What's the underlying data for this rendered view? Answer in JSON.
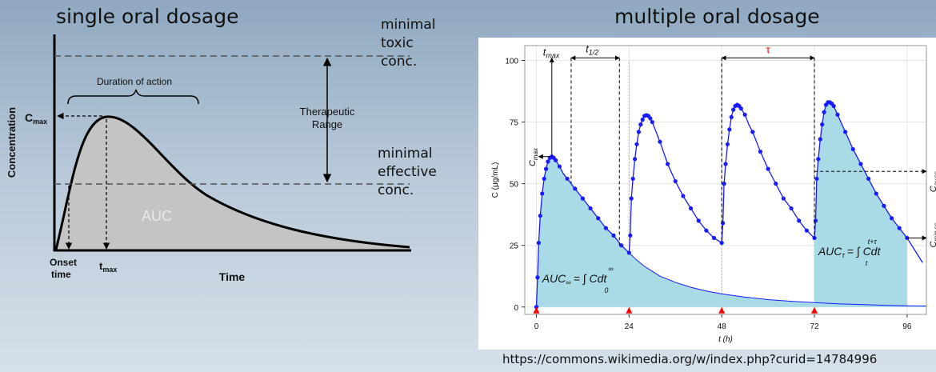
{
  "left_panel": {
    "title": "single oral dosage",
    "toxic_label": [
      "minimal",
      "toxic",
      "conc."
    ],
    "effective_label": [
      "minimal",
      "effective",
      "conc."
    ],
    "therapeutic_label": [
      "Therapeutic",
      "Range"
    ],
    "duration_label": "Duration of action",
    "ylabel": "Concentration",
    "xlabel": "Time",
    "cmax_label": "C",
    "cmax_sub": "max",
    "onset_label": [
      "Onset",
      "time"
    ],
    "tmax_label": "t",
    "tmax_sub": "max",
    "auc_label": "AUC",
    "colors": {
      "fill": "#c4c4c4",
      "curve": "#000000",
      "dash": "#555555"
    }
  },
  "right_panel": {
    "title": "multiple oral dosage",
    "tmax_label": "t",
    "tmax_sub": "max",
    "thalf_label": "t",
    "thalf_sub": "1/2",
    "tau_label": "τ",
    "cmax_label": "C",
    "cmax_sub": "max",
    "cav_label": "C",
    "cav_sub": "av,ss",
    "cmin_label": "C",
    "cmin_sub": "min,ss",
    "auc_inf_label": "AUC",
    "auc_inf_sub": "∞",
    "auc_inf_integral": "= ∫ Cdt",
    "auc_inf_lower": "0",
    "auc_inf_upper": "∞",
    "auc_tau_label": "AUC",
    "auc_tau_sub": "τ",
    "auc_tau_integral": "= ∫ Cdt",
    "auc_tau_lower": "t",
    "auc_tau_upper": "t+τ",
    "colors": {
      "series": "#1a1aff",
      "fill": "#a9dbe6",
      "dose_marker": "#ff0000",
      "tau": "#ff0000"
    }
  },
  "chart_data": {
    "type": "line",
    "xlabel": "t (h)",
    "ylabel": "C (μg/mL)",
    "xlim": [
      -3,
      101
    ],
    "ylim": [
      -3,
      106
    ],
    "xticks": [
      0,
      24,
      48,
      72,
      96
    ],
    "yticks": [
      0,
      25,
      50,
      75,
      100
    ],
    "dose_times": [
      0,
      24,
      48,
      72
    ],
    "tau_hours": 24,
    "cav_ss": 55,
    "cmin_ss": 28,
    "auc_tau_interval": [
      72,
      96
    ],
    "series": [
      {
        "points": [
          [
            0,
            0
          ],
          [
            0.3,
            12
          ],
          [
            0.6,
            26
          ],
          [
            1,
            37
          ],
          [
            1.5,
            46
          ],
          [
            2,
            52
          ],
          [
            2.5,
            56
          ],
          [
            3,
            59
          ],
          [
            3.5,
            60.5
          ],
          [
            4,
            61
          ],
          [
            4.5,
            60.5
          ],
          [
            5,
            59.5
          ],
          [
            6,
            57
          ],
          [
            7,
            54
          ],
          [
            8,
            52
          ],
          [
            9,
            50
          ],
          [
            10,
            48
          ],
          [
            12,
            44
          ],
          [
            14,
            40
          ],
          [
            16,
            36
          ],
          [
            18,
            32
          ],
          [
            20,
            29
          ],
          [
            22,
            25
          ],
          [
            24,
            22
          ],
          [
            24.3,
            29
          ],
          [
            24.6,
            44
          ],
          [
            25,
            52
          ],
          [
            25.5,
            60
          ],
          [
            26,
            66
          ],
          [
            26.5,
            71
          ],
          [
            27,
            74
          ],
          [
            27.5,
            76
          ],
          [
            28,
            77.5
          ],
          [
            28.5,
            77.8
          ],
          [
            29,
            77.5
          ],
          [
            29.5,
            76.5
          ],
          [
            30,
            75
          ],
          [
            31,
            71
          ],
          [
            32,
            67
          ],
          [
            34,
            58
          ],
          [
            36,
            51
          ],
          [
            38,
            45
          ],
          [
            40,
            40
          ],
          [
            42,
            35
          ],
          [
            44,
            31
          ],
          [
            46,
            28
          ],
          [
            48,
            26
          ],
          [
            48.3,
            34
          ],
          [
            48.6,
            50
          ],
          [
            49,
            58
          ],
          [
            49.5,
            66
          ],
          [
            50,
            72
          ],
          [
            50.5,
            77
          ],
          [
            51,
            80
          ],
          [
            51.5,
            81.5
          ],
          [
            52,
            82
          ],
          [
            52.5,
            81.5
          ],
          [
            53,
            80.5
          ],
          [
            54,
            78
          ],
          [
            55,
            74
          ],
          [
            56,
            71
          ],
          [
            58,
            63
          ],
          [
            60,
            56
          ],
          [
            62,
            50
          ],
          [
            64,
            44
          ],
          [
            66,
            40
          ],
          [
            68,
            35
          ],
          [
            70,
            31
          ],
          [
            72,
            28
          ],
          [
            72.3,
            35
          ],
          [
            72.6,
            52
          ],
          [
            73,
            60
          ],
          [
            73.5,
            68
          ],
          [
            74,
            74
          ],
          [
            74.5,
            79
          ],
          [
            75,
            82
          ],
          [
            75.5,
            83
          ],
          [
            76,
            83
          ],
          [
            76.5,
            82.5
          ],
          [
            77,
            81.5
          ],
          [
            78,
            78
          ],
          [
            80,
            71
          ],
          [
            82,
            64
          ],
          [
            84,
            58
          ],
          [
            86,
            52
          ],
          [
            88,
            46
          ],
          [
            90,
            41
          ],
          [
            92,
            36
          ],
          [
            94,
            32
          ],
          [
            96,
            28
          ],
          [
            100,
            18
          ]
        ]
      },
      {
        "points": [
          [
            24,
            22
          ],
          [
            26,
            19
          ],
          [
            28,
            16.5
          ],
          [
            30,
            14.5
          ],
          [
            32,
            12.5
          ],
          [
            36,
            10
          ],
          [
            40,
            8
          ],
          [
            44,
            6.5
          ],
          [
            48,
            5.3
          ],
          [
            54,
            4
          ],
          [
            60,
            3
          ],
          [
            66,
            2.3
          ],
          [
            72,
            1.8
          ],
          [
            78,
            1.3
          ],
          [
            84,
            1
          ],
          [
            90,
            0.7
          ],
          [
            96,
            0.5
          ],
          [
            101,
            0.4
          ]
        ]
      }
    ],
    "markers": [
      [
        0,
        0
      ],
      [
        0.3,
        12
      ],
      [
        0.6,
        26
      ],
      [
        1,
        37
      ],
      [
        1.5,
        46
      ],
      [
        2,
        52
      ],
      [
        2.5,
        56
      ],
      [
        3,
        59
      ],
      [
        3.5,
        60.5
      ],
      [
        4,
        61
      ],
      [
        4.5,
        60.5
      ],
      [
        5,
        59.5
      ],
      [
        6,
        57
      ],
      [
        8,
        52
      ],
      [
        10,
        48
      ],
      [
        12,
        44
      ],
      [
        14,
        40
      ],
      [
        16,
        36
      ],
      [
        18,
        32
      ],
      [
        20,
        29
      ],
      [
        22,
        25
      ],
      [
        24,
        22
      ],
      [
        24.3,
        29
      ],
      [
        24.6,
        44
      ],
      [
        25,
        52
      ],
      [
        25.5,
        60
      ],
      [
        26,
        66
      ],
      [
        26.5,
        71
      ],
      [
        27,
        74
      ],
      [
        27.5,
        76
      ],
      [
        28,
        77.5
      ],
      [
        28.5,
        77.8
      ],
      [
        29,
        77.5
      ],
      [
        29.5,
        76.5
      ],
      [
        30,
        75
      ],
      [
        32,
        67
      ],
      [
        34,
        58
      ],
      [
        36,
        51
      ],
      [
        38,
        45
      ],
      [
        40,
        40
      ],
      [
        42,
        35
      ],
      [
        44,
        31
      ],
      [
        46,
        28
      ],
      [
        48,
        26
      ],
      [
        48.3,
        34
      ],
      [
        48.6,
        50
      ],
      [
        49,
        58
      ],
      [
        49.5,
        66
      ],
      [
        50,
        72
      ],
      [
        50.5,
        77
      ],
      [
        51,
        80
      ],
      [
        51.5,
        81.5
      ],
      [
        52,
        82
      ],
      [
        52.5,
        81.5
      ],
      [
        53,
        80.5
      ],
      [
        54,
        78
      ],
      [
        56,
        71
      ],
      [
        58,
        63
      ],
      [
        60,
        56
      ],
      [
        62,
        50
      ],
      [
        64,
        44
      ],
      [
        66,
        40
      ],
      [
        68,
        35
      ],
      [
        70,
        31
      ],
      [
        72,
        28
      ],
      [
        72.3,
        35
      ],
      [
        72.6,
        52
      ],
      [
        73,
        60
      ],
      [
        73.5,
        68
      ],
      [
        74,
        74
      ],
      [
        74.5,
        79
      ],
      [
        75,
        82
      ],
      [
        75.5,
        83
      ],
      [
        76,
        83
      ],
      [
        76.5,
        82.5
      ],
      [
        77,
        81.5
      ],
      [
        78,
        78
      ],
      [
        80,
        71
      ],
      [
        82,
        64
      ],
      [
        84,
        58
      ],
      [
        86,
        52
      ],
      [
        88,
        46
      ],
      [
        90,
        41
      ],
      [
        92,
        36
      ],
      [
        94,
        32
      ],
      [
        96,
        28
      ]
    ]
  },
  "credit": "https://commons.wikimedia.org/w/index.php?curid=14784996"
}
